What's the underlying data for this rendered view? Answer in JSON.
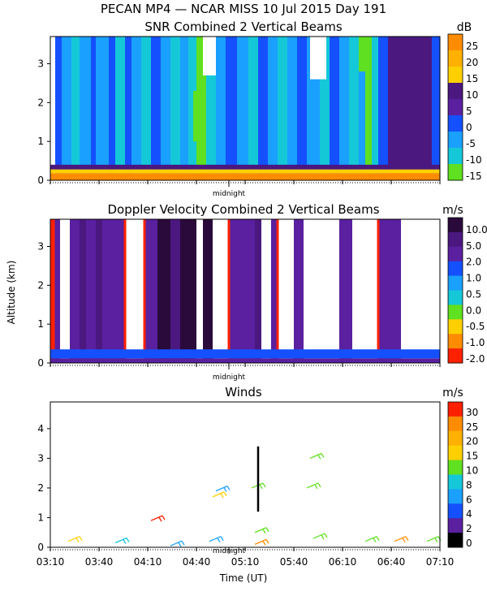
{
  "figure": {
    "title": "PECAN MP4 — NCAR MISS  10 Jul 2015 Day 191",
    "midnight_label": "midnight",
    "ylabel": "Altitude (km)",
    "xlabel": "Time (UT)",
    "x_ticks": [
      "03:10",
      "03:40",
      "04:10",
      "04:40",
      "05:10",
      "05:40",
      "06:10",
      "06:40",
      "07:10"
    ]
  },
  "chart_data": [
    {
      "type": "heatmap",
      "title": "SNR Combined 2 Vertical Beams",
      "units": "dB",
      "xlim": [
        "03:10",
        "07:10"
      ],
      "ylim": [
        0,
        3.7
      ],
      "y_ticks": [
        "0",
        "1",
        "2",
        "3"
      ],
      "colorbar": {
        "labels": [
          "25",
          "20",
          "15",
          "10",
          "5",
          "0",
          "-5",
          "-10",
          "-15"
        ],
        "colors": [
          "#ff8c00",
          "#ffb000",
          "#ffd000",
          "#4b1880",
          "#5a20a0",
          "#1550ff",
          "#1aa0ff",
          "#15c8d8",
          "#5fe020"
        ]
      },
      "columns": [
        {
          "from": "03:10",
          "to": "03:13",
          "color": "#ffffff"
        },
        {
          "from": "03:13",
          "to": "03:17",
          "color": "#1550ff"
        },
        {
          "from": "03:17",
          "to": "03:23",
          "color": "#1aa0ff"
        },
        {
          "from": "03:23",
          "to": "03:28",
          "color": "#15c8d8"
        },
        {
          "from": "03:28",
          "to": "03:35",
          "color": "#1aa0ff"
        },
        {
          "from": "03:35",
          "to": "03:38",
          "color": "#1550ff"
        },
        {
          "from": "03:38",
          "to": "03:46",
          "color": "#1aa0ff"
        },
        {
          "from": "03:46",
          "to": "03:50",
          "color": "#1550ff"
        },
        {
          "from": "03:50",
          "to": "03:56",
          "color": "#15c8d8"
        },
        {
          "from": "03:56",
          "to": "04:00",
          "color": "#1550ff"
        },
        {
          "from": "04:00",
          "to": "04:06",
          "color": "#1aa0ff"
        },
        {
          "from": "04:06",
          "to": "04:12",
          "color": "#15c8d8"
        },
        {
          "from": "04:12",
          "to": "04:18",
          "color": "#1550ff"
        },
        {
          "from": "04:18",
          "to": "04:24",
          "color": "#1aa0ff"
        },
        {
          "from": "04:24",
          "to": "04:30",
          "color": "#15c8d8"
        },
        {
          "from": "04:30",
          "to": "04:35",
          "color": "#1aa0ff"
        },
        {
          "from": "04:35",
          "to": "04:40",
          "color": "#15c8d8"
        },
        {
          "from": "04:40",
          "to": "04:46",
          "color": "#5fe020"
        },
        {
          "from": "04:46",
          "to": "04:52",
          "color": "#15c8d8"
        },
        {
          "from": "04:52",
          "to": "04:58",
          "color": "#1aa0ff"
        },
        {
          "from": "04:58",
          "to": "05:05",
          "color": "#1550ff"
        },
        {
          "from": "05:05",
          "to": "05:12",
          "color": "#1aa0ff"
        },
        {
          "from": "05:12",
          "to": "05:18",
          "color": "#15c8d8"
        },
        {
          "from": "05:18",
          "to": "05:24",
          "color": "#1550ff"
        },
        {
          "from": "05:24",
          "to": "05:30",
          "color": "#1aa0ff"
        },
        {
          "from": "05:30",
          "to": "05:36",
          "color": "#15c8d8"
        },
        {
          "from": "05:36",
          "to": "05:42",
          "color": "#1aa0ff"
        },
        {
          "from": "05:42",
          "to": "05:48",
          "color": "#1550ff"
        },
        {
          "from": "05:48",
          "to": "05:56",
          "color": "#1aa0ff"
        },
        {
          "from": "05:56",
          "to": "06:02",
          "color": "#15c8d8"
        },
        {
          "from": "06:02",
          "to": "06:08",
          "color": "#1550ff"
        },
        {
          "from": "06:08",
          "to": "06:14",
          "color": "#1aa0ff"
        },
        {
          "from": "06:14",
          "to": "06:20",
          "color": "#15c8d8"
        },
        {
          "from": "06:20",
          "to": "06:24",
          "color": "#1aa0ff"
        },
        {
          "from": "06:24",
          "to": "06:28",
          "color": "#5fe020"
        },
        {
          "from": "06:28",
          "to": "06:32",
          "color": "#15c8d8"
        },
        {
          "from": "06:32",
          "to": "06:38",
          "color": "#1550ff"
        },
        {
          "from": "06:38",
          "to": "07:05",
          "color": "#4b1880"
        },
        {
          "from": "07:05",
          "to": "07:10",
          "color": "#1550ff"
        }
      ],
      "patches": [
        {
          "from": "04:44",
          "to": "04:52",
          "ybot": 2.7,
          "ytop": 3.7,
          "color": "#ffffff"
        },
        {
          "from": "04:38",
          "to": "04:44",
          "ybot": 1.0,
          "ytop": 2.3,
          "color": "#5fe020"
        },
        {
          "from": "05:50",
          "to": "06:00",
          "ybot": 2.6,
          "ytop": 3.7,
          "color": "#ffffff"
        },
        {
          "from": "06:20",
          "to": "06:28",
          "ybot": 2.8,
          "ytop": 3.7,
          "color": "#5fe020"
        }
      ],
      "bands": [
        {
          "ybot": 0.0,
          "ytop": 0.18,
          "color": "#ff8c00"
        },
        {
          "ybot": 0.18,
          "ytop": 0.28,
          "color": "#ffd000"
        },
        {
          "ybot": 0.28,
          "ytop": 0.4,
          "color": "#4b1880"
        }
      ]
    },
    {
      "type": "heatmap",
      "title": "Doppler Velocity Combined 2 Vertical Beams",
      "units": "m/s",
      "xlim": [
        "03:10",
        "07:10"
      ],
      "ylim": [
        0,
        3.7
      ],
      "y_ticks": [
        "0",
        "1",
        "2",
        "3"
      ],
      "colorbar": {
        "labels": [
          "10.0",
          "5.0",
          "2.0",
          "1.0",
          "0.5",
          "0.0",
          "-0.5",
          "-1.0",
          "-2.0"
        ],
        "colors": [
          "#2a0a3a",
          "#4b1880",
          "#5a20a0",
          "#1550ff",
          "#1aa0ff",
          "#15c8d8",
          "#5fe020",
          "#ffd000",
          "#ff8c00",
          "#ff2000"
        ]
      },
      "columns": [
        {
          "from": "03:10",
          "to": "03:12",
          "color": "#ff2000"
        },
        {
          "from": "03:12",
          "to": "03:16",
          "color": "#5a20a0"
        },
        {
          "from": "03:16",
          "to": "03:22",
          "color": "#ffffff"
        },
        {
          "from": "03:22",
          "to": "03:28",
          "color": "#5a20a0"
        },
        {
          "from": "03:28",
          "to": "03:32",
          "color": "#4b1880"
        },
        {
          "from": "03:32",
          "to": "03:38",
          "color": "#5a20a0"
        },
        {
          "from": "03:38",
          "to": "03:42",
          "color": "#4b1880"
        },
        {
          "from": "03:42",
          "to": "03:56",
          "color": "#5a20a0"
        },
        {
          "from": "03:56",
          "to": "04:08",
          "color": "#ffffff"
        },
        {
          "from": "04:08",
          "to": "04:16",
          "color": "#5a20a0"
        },
        {
          "from": "04:16",
          "to": "04:24",
          "color": "#2a0a3a"
        },
        {
          "from": "04:24",
          "to": "04:30",
          "color": "#4b1880"
        },
        {
          "from": "04:30",
          "to": "04:40",
          "color": "#2a0a3a"
        },
        {
          "from": "04:40",
          "to": "04:44",
          "color": "#ffffff"
        },
        {
          "from": "04:44",
          "to": "04:50",
          "color": "#2a0a3a"
        },
        {
          "from": "04:50",
          "to": "05:00",
          "color": "#ffffff"
        },
        {
          "from": "05:00",
          "to": "05:16",
          "color": "#5a20a0"
        },
        {
          "from": "05:16",
          "to": "05:20",
          "color": "#4b1880"
        },
        {
          "from": "05:20",
          "to": "05:26",
          "color": "#ffffff"
        },
        {
          "from": "05:26",
          "to": "05:30",
          "color": "#5a20a0"
        },
        {
          "from": "05:30",
          "to": "05:40",
          "color": "#ffffff"
        },
        {
          "from": "05:40",
          "to": "05:46",
          "color": "#5a20a0"
        },
        {
          "from": "05:46",
          "to": "06:08",
          "color": "#ffffff"
        },
        {
          "from": "06:08",
          "to": "06:16",
          "color": "#5a20a0"
        },
        {
          "from": "06:16",
          "to": "06:32",
          "color": "#ffffff"
        },
        {
          "from": "06:32",
          "to": "06:46",
          "color": "#5a20a0"
        },
        {
          "from": "06:46",
          "to": "06:54",
          "color": "#ffffff"
        },
        {
          "from": "06:54",
          "to": "07:10",
          "color": "#ffffff"
        }
      ],
      "edges": [
        "03:12",
        "03:56",
        "04:08",
        "05:00",
        "05:30",
        "06:32"
      ],
      "bands": [
        {
          "ybot": 0.0,
          "ytop": 0.12,
          "color": "#5a20a0"
        },
        {
          "ybot": 0.12,
          "ytop": 0.35,
          "color": "#1550ff"
        }
      ]
    },
    {
      "type": "scatter",
      "title": "Winds",
      "units": "m/s",
      "xlim": [
        "03:10",
        "07:10"
      ],
      "ylim": [
        0,
        4.9
      ],
      "y_ticks": [
        "0",
        "1",
        "2",
        "3",
        "4"
      ],
      "colorbar": {
        "labels": [
          "30",
          "25",
          "20",
          "15",
          "10",
          "8",
          "6",
          "4",
          "2",
          "0"
        ],
        "colors": [
          "#ff2000",
          "#ff8c00",
          "#ffb000",
          "#ffd000",
          "#5fe020",
          "#15c8d8",
          "#1aa0ff",
          "#1550ff",
          "#5a20a0",
          "#000000"
        ]
      },
      "barbs": [
        {
          "t": "03:21",
          "alt": 0.2,
          "color": "#ffd000"
        },
        {
          "t": "03:50",
          "alt": 0.15,
          "color": "#15c8d8"
        },
        {
          "t": "04:24",
          "alt": 0.05,
          "color": "#1aa0ff"
        },
        {
          "t": "04:12",
          "alt": 0.9,
          "color": "#ff2000"
        },
        {
          "t": "04:50",
          "alt": 1.7,
          "color": "#ffd000"
        },
        {
          "t": "04:52",
          "alt": 1.9,
          "color": "#1aa0ff"
        },
        {
          "t": "04:48",
          "alt": 0.2,
          "color": "#1aa0ff"
        },
        {
          "t": "05:16",
          "alt": 0.1,
          "color": "#ff8c00"
        },
        {
          "t": "05:16",
          "alt": 0.5,
          "color": "#5fe020"
        },
        {
          "t": "05:14",
          "alt": 2.0,
          "color": "#5fe020"
        },
        {
          "t": "05:48",
          "alt": 2.0,
          "color": "#5fe020"
        },
        {
          "t": "05:50",
          "alt": 3.0,
          "color": "#5fe020"
        },
        {
          "t": "05:52",
          "alt": 0.3,
          "color": "#5fe020"
        },
        {
          "t": "06:24",
          "alt": 0.2,
          "color": "#5fe020"
        },
        {
          "t": "06:42",
          "alt": 0.2,
          "color": "#ff8c00"
        },
        {
          "t": "07:02",
          "alt": 0.2,
          "color": "#5fe020"
        }
      ],
      "profile": {
        "t": "05:18",
        "alt_bottom": 1.2,
        "alt_top": 3.4,
        "color": "#000000"
      }
    }
  ]
}
